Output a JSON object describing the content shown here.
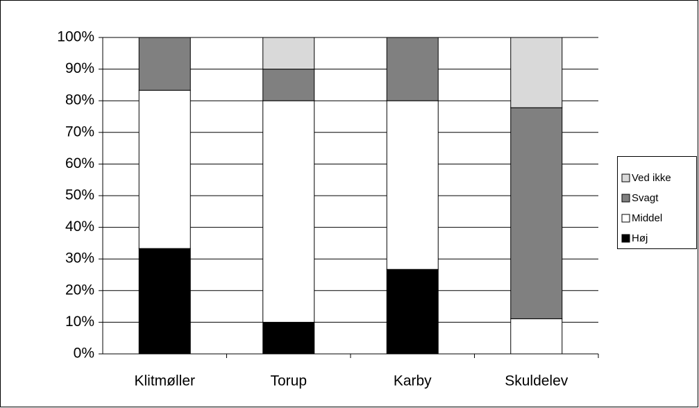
{
  "chart_data": {
    "type": "stacked_bar",
    "categories": [
      "Klitmøller",
      "Torup",
      "Karby",
      "Skuldelev"
    ],
    "series": [
      {
        "name": "Høj",
        "color": "#000000",
        "values": [
          33.3,
          10,
          26.7,
          0
        ]
      },
      {
        "name": "Middel",
        "color": "#ffffff",
        "values": [
          50,
          70,
          53.3,
          11.1
        ]
      },
      {
        "name": "Svagt",
        "color": "#808080",
        "values": [
          16.7,
          10,
          20,
          66.7
        ]
      },
      {
        "name": "Ved ikke",
        "color": "#d9d9d9",
        "values": [
          0,
          10,
          0,
          22.2
        ]
      }
    ],
    "ylim": [
      0,
      100
    ],
    "yticks": [
      {
        "value": 0,
        "label": "0%"
      },
      {
        "value": 10,
        "label": "10%"
      },
      {
        "value": 20,
        "label": "20%"
      },
      {
        "value": 30,
        "label": "30%"
      },
      {
        "value": 40,
        "label": "40%"
      },
      {
        "value": 50,
        "label": "50%"
      },
      {
        "value": 60,
        "label": "60%"
      },
      {
        "value": 70,
        "label": "70%"
      },
      {
        "value": 80,
        "label": "80%"
      },
      {
        "value": 90,
        "label": "90%"
      },
      {
        "value": 100,
        "label": "100%"
      }
    ],
    "grid": true,
    "legend": "right"
  }
}
